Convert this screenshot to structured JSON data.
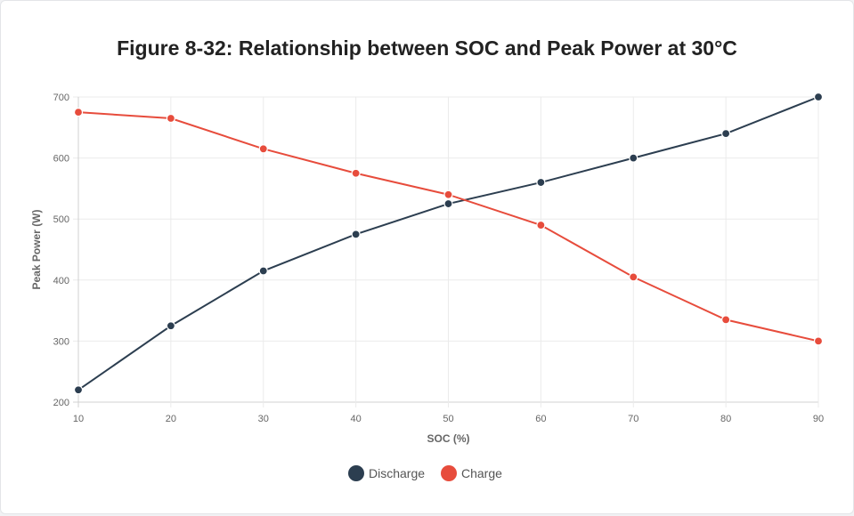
{
  "chart_data": {
    "type": "line",
    "title": "Figure 8-32: Relationship between SOC and Peak Power at 30°C",
    "xlabel": "SOC (%)",
    "ylabel": "Peak Power (W)",
    "x": [
      10,
      20,
      30,
      40,
      50,
      60,
      70,
      80,
      90
    ],
    "xlim": [
      10,
      90
    ],
    "ylim": [
      200,
      700
    ],
    "yticks": [
      200,
      300,
      400,
      500,
      600,
      700
    ],
    "grid": true,
    "legend_position": "bottom",
    "series": [
      {
        "name": "Discharge",
        "color": "#2c3e50",
        "values": [
          220,
          325,
          415,
          475,
          525,
          560,
          600,
          640,
          700
        ]
      },
      {
        "name": "Charge",
        "color": "#e74c3c",
        "values": [
          675,
          665,
          615,
          575,
          540,
          490,
          405,
          335,
          300
        ]
      }
    ]
  }
}
